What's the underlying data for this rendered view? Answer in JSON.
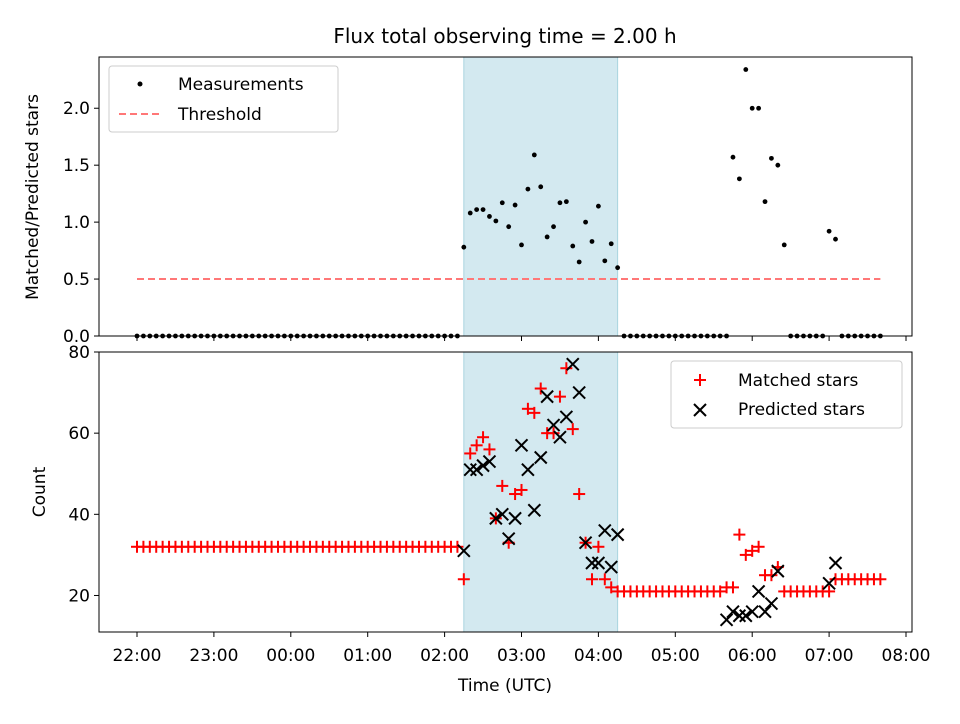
{
  "title": "Flux total observing time = 2.00 h",
  "colors": {
    "measurement": "#000000",
    "threshold": "#ff7777",
    "matched": "#ff0000",
    "predicted": "#000000",
    "window_fill": "#d3e9f0",
    "window_edge": "#a9d4df"
  },
  "chart_data": [
    {
      "type": "scatter",
      "ylabel": "Matched/Predicted stars",
      "ylim": [
        0,
        2.45
      ],
      "yticks": [
        0.0,
        0.5,
        1.0,
        1.5,
        2.0
      ],
      "ytick_labels": [
        "0.0",
        "0.5",
        "1.0",
        "1.5",
        "2.0"
      ],
      "legend": "top-left",
      "legend_entries": [
        "Measurements",
        "Threshold"
      ],
      "highlight_window": [
        "02:15",
        "04:15"
      ],
      "threshold": {
        "value": 0.5,
        "x_range": [
          "22:00",
          "07:40"
        ]
      },
      "series": [
        {
          "name": "Measurements",
          "zero_points": [
            {
              "x": "22:00",
              "y": 0
            },
            {
              "x": "22:05",
              "y": 0
            },
            {
              "x": "22:10",
              "y": 0
            },
            {
              "x": "22:15",
              "y": 0
            },
            {
              "x": "22:20",
              "y": 0
            },
            {
              "x": "22:25",
              "y": 0
            },
            {
              "x": "22:30",
              "y": 0
            },
            {
              "x": "22:35",
              "y": 0
            },
            {
              "x": "22:40",
              "y": 0
            },
            {
              "x": "22:45",
              "y": 0
            },
            {
              "x": "22:50",
              "y": 0
            },
            {
              "x": "22:55",
              "y": 0
            },
            {
              "x": "23:00",
              "y": 0
            },
            {
              "x": "23:05",
              "y": 0
            },
            {
              "x": "23:10",
              "y": 0
            },
            {
              "x": "23:15",
              "y": 0
            },
            {
              "x": "23:20",
              "y": 0
            },
            {
              "x": "23:25",
              "y": 0
            },
            {
              "x": "23:30",
              "y": 0
            },
            {
              "x": "23:35",
              "y": 0
            },
            {
              "x": "23:40",
              "y": 0
            },
            {
              "x": "23:45",
              "y": 0
            },
            {
              "x": "23:50",
              "y": 0
            },
            {
              "x": "23:55",
              "y": 0
            },
            {
              "x": "00:00",
              "y": 0
            },
            {
              "x": "00:05",
              "y": 0
            },
            {
              "x": "00:10",
              "y": 0
            },
            {
              "x": "00:15",
              "y": 0
            },
            {
              "x": "00:20",
              "y": 0
            },
            {
              "x": "00:25",
              "y": 0
            },
            {
              "x": "00:30",
              "y": 0
            },
            {
              "x": "00:35",
              "y": 0
            },
            {
              "x": "00:40",
              "y": 0
            },
            {
              "x": "00:45",
              "y": 0
            },
            {
              "x": "00:50",
              "y": 0
            },
            {
              "x": "00:55",
              "y": 0
            },
            {
              "x": "01:00",
              "y": 0
            },
            {
              "x": "01:05",
              "y": 0
            },
            {
              "x": "01:10",
              "y": 0
            },
            {
              "x": "01:15",
              "y": 0
            },
            {
              "x": "01:20",
              "y": 0
            },
            {
              "x": "01:25",
              "y": 0
            },
            {
              "x": "01:30",
              "y": 0
            },
            {
              "x": "01:35",
              "y": 0
            },
            {
              "x": "01:40",
              "y": 0
            },
            {
              "x": "01:45",
              "y": 0
            },
            {
              "x": "01:50",
              "y": 0
            },
            {
              "x": "01:55",
              "y": 0
            },
            {
              "x": "02:00",
              "y": 0
            },
            {
              "x": "02:05",
              "y": 0
            },
            {
              "x": "02:10",
              "y": 0
            },
            {
              "x": "04:20",
              "y": 0
            },
            {
              "x": "04:25",
              "y": 0
            },
            {
              "x": "04:30",
              "y": 0
            },
            {
              "x": "04:35",
              "y": 0
            },
            {
              "x": "04:40",
              "y": 0
            },
            {
              "x": "04:45",
              "y": 0
            },
            {
              "x": "04:50",
              "y": 0
            },
            {
              "x": "04:55",
              "y": 0
            },
            {
              "x": "05:00",
              "y": 0
            },
            {
              "x": "05:05",
              "y": 0
            },
            {
              "x": "05:10",
              "y": 0
            },
            {
              "x": "05:15",
              "y": 0
            },
            {
              "x": "05:20",
              "y": 0
            },
            {
              "x": "05:25",
              "y": 0
            },
            {
              "x": "05:30",
              "y": 0
            },
            {
              "x": "05:35",
              "y": 0
            },
            {
              "x": "05:40",
              "y": 0
            },
            {
              "x": "06:30",
              "y": 0
            },
            {
              "x": "06:35",
              "y": 0
            },
            {
              "x": "06:40",
              "y": 0
            },
            {
              "x": "06:45",
              "y": 0
            },
            {
              "x": "06:50",
              "y": 0
            },
            {
              "x": "06:55",
              "y": 0
            },
            {
              "x": "07:10",
              "y": 0
            },
            {
              "x": "07:15",
              "y": 0
            },
            {
              "x": "07:20",
              "y": 0
            },
            {
              "x": "07:25",
              "y": 0
            },
            {
              "x": "07:30",
              "y": 0
            },
            {
              "x": "07:35",
              "y": 0
            },
            {
              "x": "07:40",
              "y": 0
            }
          ],
          "points": [
            {
              "x": "02:15",
              "y": 0.78
            },
            {
              "x": "02:20",
              "y": 1.08
            },
            {
              "x": "02:25",
              "y": 1.11
            },
            {
              "x": "02:30",
              "y": 1.11
            },
            {
              "x": "02:35",
              "y": 1.05
            },
            {
              "x": "02:40",
              "y": 1.01
            },
            {
              "x": "02:45",
              "y": 1.17
            },
            {
              "x": "02:50",
              "y": 0.96
            },
            {
              "x": "02:55",
              "y": 1.15
            },
            {
              "x": "03:00",
              "y": 0.8
            },
            {
              "x": "03:05",
              "y": 1.29
            },
            {
              "x": "03:10",
              "y": 1.59
            },
            {
              "x": "03:15",
              "y": 1.31
            },
            {
              "x": "03:20",
              "y": 0.87
            },
            {
              "x": "03:25",
              "y": 0.96
            },
            {
              "x": "03:30",
              "y": 1.17
            },
            {
              "x": "03:35",
              "y": 1.18
            },
            {
              "x": "03:40",
              "y": 0.79
            },
            {
              "x": "03:45",
              "y": 0.65
            },
            {
              "x": "03:50",
              "y": 1.0
            },
            {
              "x": "03:55",
              "y": 0.83
            },
            {
              "x": "04:00",
              "y": 1.14
            },
            {
              "x": "04:05",
              "y": 0.66
            },
            {
              "x": "04:10",
              "y": 0.81
            },
            {
              "x": "04:15",
              "y": 0.6
            },
            {
              "x": "05:45",
              "y": 1.57
            },
            {
              "x": "05:50",
              "y": 1.38
            },
            {
              "x": "05:55",
              "y": 2.34
            },
            {
              "x": "06:00",
              "y": 2.0
            },
            {
              "x": "06:05",
              "y": 2.0
            },
            {
              "x": "06:10",
              "y": 1.18
            },
            {
              "x": "06:15",
              "y": 1.56
            },
            {
              "x": "06:20",
              "y": 1.5
            },
            {
              "x": "06:25",
              "y": 0.8
            },
            {
              "x": "07:00",
              "y": 0.92
            },
            {
              "x": "07:05",
              "y": 0.85
            }
          ]
        },
        {
          "name": "Threshold",
          "y": 0.5
        }
      ]
    },
    {
      "type": "scatter",
      "xlabel": "Time (UTC)",
      "ylabel": "Count",
      "ylim": [
        11,
        80
      ],
      "yticks": [
        20,
        40,
        60,
        80
      ],
      "ytick_labels": [
        "20",
        "40",
        "60",
        "80"
      ],
      "xticks": [
        "22:00",
        "23:00",
        "00:00",
        "01:00",
        "02:00",
        "03:00",
        "04:00",
        "05:00",
        "06:00",
        "07:00",
        "08:00"
      ],
      "legend": "top-right",
      "legend_entries": [
        "Matched stars",
        "Predicted stars"
      ],
      "highlight_window": [
        "02:15",
        "04:15"
      ],
      "series": [
        {
          "name": "Matched stars",
          "constant_runs": [
            {
              "from": "22:00",
              "to": "02:10",
              "step_minutes": 5,
              "y": 32
            },
            {
              "from": "04:20",
              "to": "05:35",
              "step_minutes": 5,
              "y": 21
            },
            {
              "from": "06:25",
              "to": "06:55",
              "step_minutes": 5,
              "y": 21
            },
            {
              "from": "07:05",
              "to": "07:40",
              "step_minutes": 5,
              "y": 24
            }
          ],
          "points": [
            {
              "x": "02:15",
              "y": 24
            },
            {
              "x": "02:20",
              "y": 55
            },
            {
              "x": "02:25",
              "y": 57
            },
            {
              "x": "02:30",
              "y": 59
            },
            {
              "x": "02:35",
              "y": 56
            },
            {
              "x": "02:40",
              "y": 39
            },
            {
              "x": "02:45",
              "y": 47
            },
            {
              "x": "02:50",
              "y": 33
            },
            {
              "x": "02:55",
              "y": 45
            },
            {
              "x": "03:00",
              "y": 46
            },
            {
              "x": "03:05",
              "y": 66
            },
            {
              "x": "03:10",
              "y": 65
            },
            {
              "x": "03:15",
              "y": 71
            },
            {
              "x": "03:20",
              "y": 60
            },
            {
              "x": "03:25",
              "y": 60
            },
            {
              "x": "03:30",
              "y": 69
            },
            {
              "x": "03:35",
              "y": 76
            },
            {
              "x": "03:40",
              "y": 61
            },
            {
              "x": "03:45",
              "y": 45
            },
            {
              "x": "03:50",
              "y": 33
            },
            {
              "x": "03:55",
              "y": 24
            },
            {
              "x": "04:00",
              "y": 32
            },
            {
              "x": "04:05",
              "y": 24
            },
            {
              "x": "04:10",
              "y": 22
            },
            {
              "x": "04:15",
              "y": 21
            },
            {
              "x": "05:40",
              "y": 22
            },
            {
              "x": "05:45",
              "y": 22
            },
            {
              "x": "05:50",
              "y": 35
            },
            {
              "x": "05:55",
              "y": 30
            },
            {
              "x": "06:00",
              "y": 31
            },
            {
              "x": "06:05",
              "y": 32
            },
            {
              "x": "06:10",
              "y": 25
            },
            {
              "x": "06:15",
              "y": 25
            },
            {
              "x": "06:20",
              "y": 27
            },
            {
              "x": "07:00",
              "y": 21
            }
          ]
        },
        {
          "name": "Predicted stars",
          "points": [
            {
              "x": "02:15",
              "y": 31
            },
            {
              "x": "02:20",
              "y": 51
            },
            {
              "x": "02:25",
              "y": 51
            },
            {
              "x": "02:30",
              "y": 52
            },
            {
              "x": "02:35",
              "y": 53
            },
            {
              "x": "02:40",
              "y": 39
            },
            {
              "x": "02:45",
              "y": 40
            },
            {
              "x": "02:50",
              "y": 34
            },
            {
              "x": "02:55",
              "y": 39
            },
            {
              "x": "03:00",
              "y": 57
            },
            {
              "x": "03:05",
              "y": 51
            },
            {
              "x": "03:10",
              "y": 41
            },
            {
              "x": "03:15",
              "y": 54
            },
            {
              "x": "03:20",
              "y": 69
            },
            {
              "x": "03:25",
              "y": 62
            },
            {
              "x": "03:30",
              "y": 59
            },
            {
              "x": "03:35",
              "y": 64
            },
            {
              "x": "03:40",
              "y": 77
            },
            {
              "x": "03:45",
              "y": 70
            },
            {
              "x": "03:50",
              "y": 33
            },
            {
              "x": "03:55",
              "y": 28
            },
            {
              "x": "04:00",
              "y": 28
            },
            {
              "x": "04:05",
              "y": 36
            },
            {
              "x": "04:10",
              "y": 27
            },
            {
              "x": "04:15",
              "y": 35
            },
            {
              "x": "05:40",
              "y": 14
            },
            {
              "x": "05:45",
              "y": 16
            },
            {
              "x": "05:50",
              "y": 15
            },
            {
              "x": "05:55",
              "y": 15
            },
            {
              "x": "06:00",
              "y": 16
            },
            {
              "x": "06:05",
              "y": 21
            },
            {
              "x": "06:10",
              "y": 16
            },
            {
              "x": "06:15",
              "y": 18
            },
            {
              "x": "06:20",
              "y": 26
            },
            {
              "x": "07:00",
              "y": 23
            },
            {
              "x": "07:05",
              "y": 28
            }
          ]
        }
      ]
    }
  ]
}
